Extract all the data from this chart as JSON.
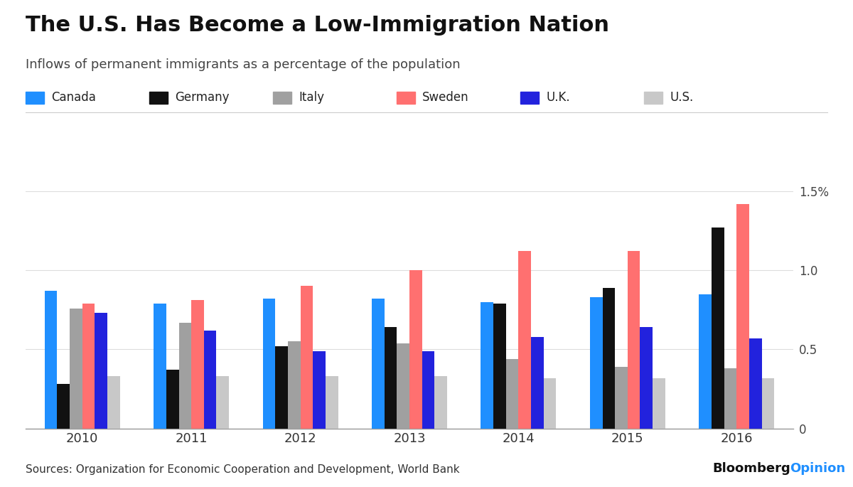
{
  "title": "The U.S. Has Become a Low-Immigration Nation",
  "subtitle": "Inflows of permanent immigrants as a percentage of the population",
  "source": "Sources: Organization for Economic Cooperation and Development, World Bank",
  "years": [
    2010,
    2011,
    2012,
    2013,
    2014,
    2015,
    2016
  ],
  "countries": [
    "Canada",
    "Germany",
    "Italy",
    "Sweden",
    "U.K.",
    "U.S."
  ],
  "colors": {
    "Canada": "#1F8FFF",
    "Germany": "#111111",
    "Italy": "#A0A0A0",
    "Sweden": "#FF7070",
    "U.K.": "#2222DD",
    "U.S.": "#C8C8C8"
  },
  "data": {
    "Canada": [
      0.87,
      0.79,
      0.82,
      0.82,
      0.8,
      0.83,
      0.85
    ],
    "Germany": [
      0.28,
      0.37,
      0.52,
      0.64,
      0.79,
      0.89,
      1.27
    ],
    "Italy": [
      0.76,
      0.67,
      0.55,
      0.54,
      0.44,
      0.39,
      0.38
    ],
    "Sweden": [
      0.79,
      0.81,
      0.9,
      1.0,
      1.12,
      1.12,
      1.42
    ],
    "U.K.": [
      0.73,
      0.62,
      0.49,
      0.49,
      0.58,
      0.64,
      0.57
    ],
    "U.S.": [
      0.33,
      0.33,
      0.33,
      0.33,
      0.32,
      0.32,
      0.32
    ]
  },
  "ylim": [
    0,
    1.6
  ],
  "yticks": [
    0,
    0.5,
    1.0,
    1.5
  ],
  "ytick_labels": [
    "0",
    "0.5",
    "1.0",
    "1.5%"
  ],
  "background_color": "#FFFFFF",
  "title_fontsize": 22,
  "subtitle_fontsize": 13,
  "legend_fontsize": 12,
  "axis_fontsize": 12,
  "source_fontsize": 11
}
